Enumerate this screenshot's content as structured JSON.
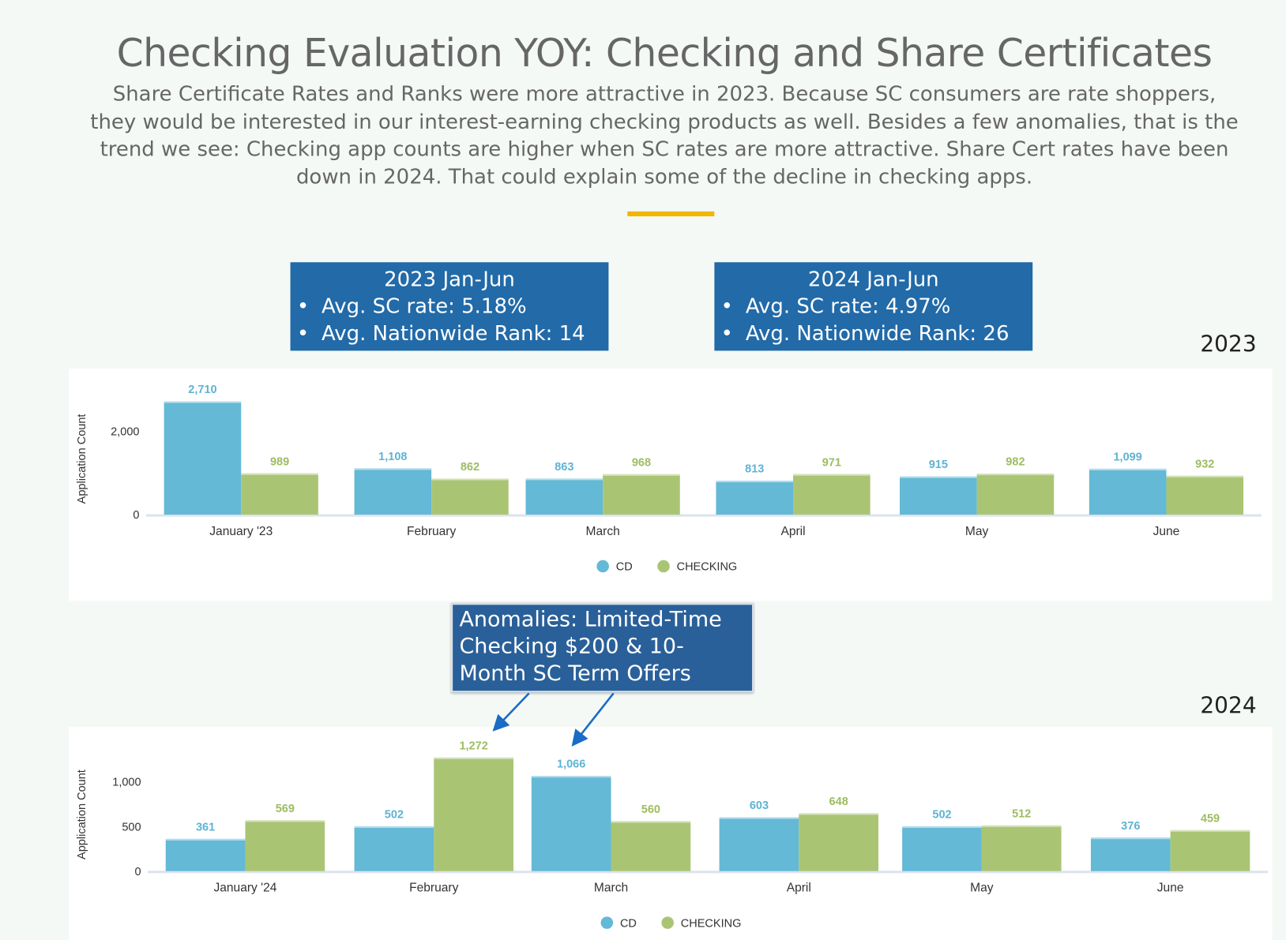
{
  "header": {
    "title": "Checking Evaluation YOY: Checking and Share Certificates",
    "subtitle": "Share Certificate Rates and Ranks were more attractive in 2023. Because SC consumers are rate shoppers, they would be interested in our interest-earning checking products as well. Besides a few anomalies, that is the trend we see: Checking app counts are higher when SC rates are more attractive. Share Cert rates have been down in 2024. That could explain some of the decline in checking apps."
  },
  "info_boxes": [
    {
      "heading": "2023 Jan-Jun",
      "bullets": [
        "Avg. SC rate: 5.18%",
        "Avg. Nationwide Rank: 14"
      ]
    },
    {
      "heading": "2024 Jan-Jun",
      "bullets": [
        "Avg. SC rate: 4.97%",
        "Avg. Nationwide Rank: 26"
      ]
    }
  ],
  "annotation": {
    "text": "Anomalies: Limited-Time Checking $200 & 10-Month SC Term Offers"
  },
  "colors": {
    "cd": "#63b9d6",
    "checking": "#a9c574",
    "box": "#226aa8",
    "accent": "#f2b600"
  },
  "chart_data": [
    {
      "type": "bar",
      "title": "2023",
      "ylabel": "Application Count",
      "ylim": [
        0,
        2900
      ],
      "yticks": [
        0,
        2000
      ],
      "ytick_labels": [
        "0",
        "2,000"
      ],
      "categories": [
        "January '23",
        "February",
        "March",
        "April",
        "May",
        "June"
      ],
      "series": [
        {
          "name": "CD",
          "values": [
            2710,
            1108,
            863,
            813,
            915,
            1099
          ],
          "labels": [
            "2,710",
            "1,108",
            "863",
            "813",
            "915",
            "1,099"
          ]
        },
        {
          "name": "CHECKING",
          "values": [
            989,
            862,
            968,
            971,
            982,
            932
          ],
          "labels": [
            "989",
            "862",
            "968",
            "971",
            "982",
            "932"
          ]
        }
      ],
      "legend": "bottom"
    },
    {
      "type": "bar",
      "title": "2024",
      "ylabel": "Application Count",
      "ylim": [
        0,
        1400
      ],
      "yticks": [
        0,
        500,
        1000
      ],
      "ytick_labels": [
        "0",
        "500",
        "1,000"
      ],
      "categories": [
        "January '24",
        "February",
        "March",
        "April",
        "May",
        "June"
      ],
      "series": [
        {
          "name": "CD",
          "values": [
            361,
            502,
            1066,
            603,
            502,
            376
          ],
          "labels": [
            "361",
            "502",
            "1,066",
            "603",
            "502",
            "376"
          ]
        },
        {
          "name": "CHECKING",
          "values": [
            569,
            1272,
            560,
            648,
            512,
            459
          ],
          "labels": [
            "569",
            "1,272",
            "560",
            "648",
            "512",
            "459"
          ]
        }
      ],
      "legend": "bottom"
    }
  ]
}
